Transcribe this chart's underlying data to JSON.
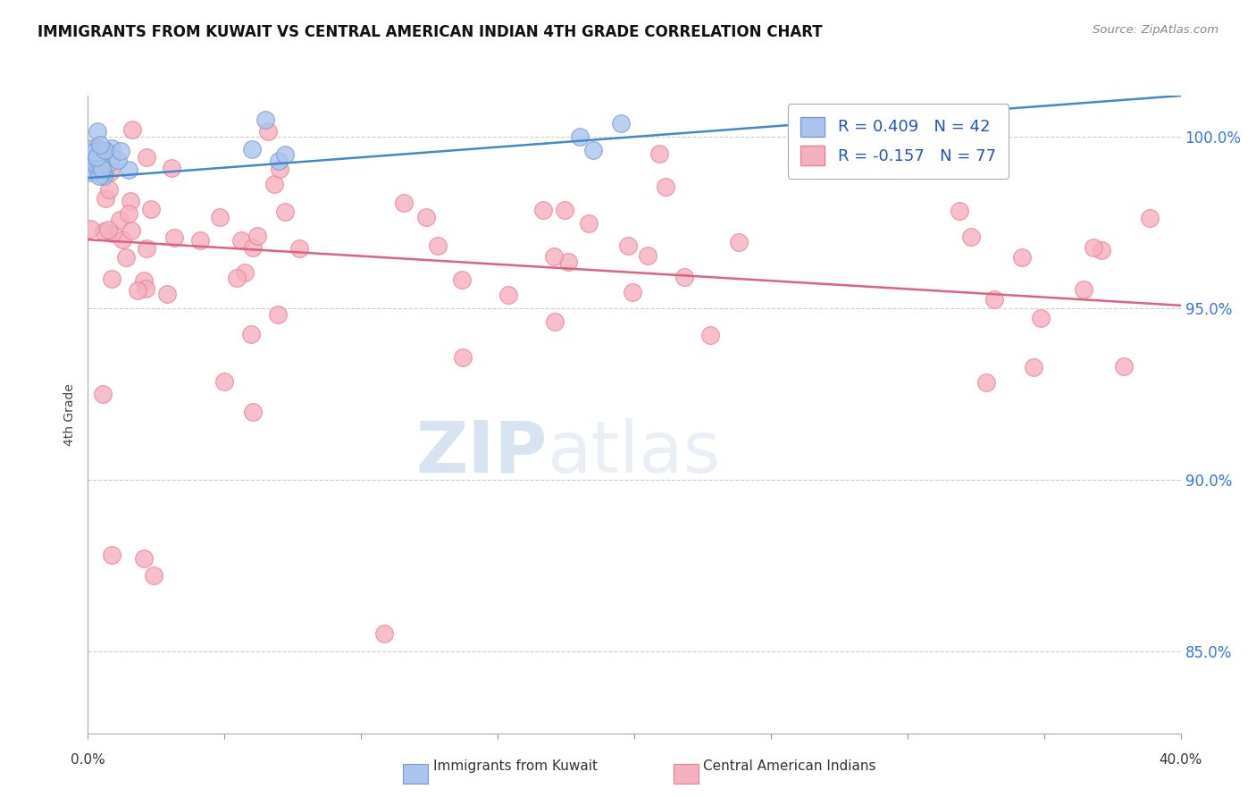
{
  "title": "IMMIGRANTS FROM KUWAIT VS CENTRAL AMERICAN INDIAN 4TH GRADE CORRELATION CHART",
  "source": "Source: ZipAtlas.com",
  "ylabel": "4th Grade",
  "y_ticks": [
    0.85,
    0.9,
    0.95,
    1.0
  ],
  "y_tick_labels": [
    "85.0%",
    "90.0%",
    "95.0%",
    "100.0%"
  ],
  "xlim": [
    0.0,
    0.4
  ],
  "ylim": [
    0.826,
    1.012
  ],
  "kuwait_R": 0.409,
  "kuwait_N": 42,
  "caindian_R": -0.157,
  "caindian_N": 77,
  "kuwait_color": "#aac4ee",
  "kuwait_edge": "#7799cc",
  "caindian_color": "#f5b0c0",
  "caindian_edge": "#e88090",
  "kuwait_line_color": "#4488cc",
  "caindian_line_color": "#e06080",
  "watermark_zip": "ZIP",
  "watermark_atlas": "atlas",
  "legend_label_color": "#2255bb"
}
